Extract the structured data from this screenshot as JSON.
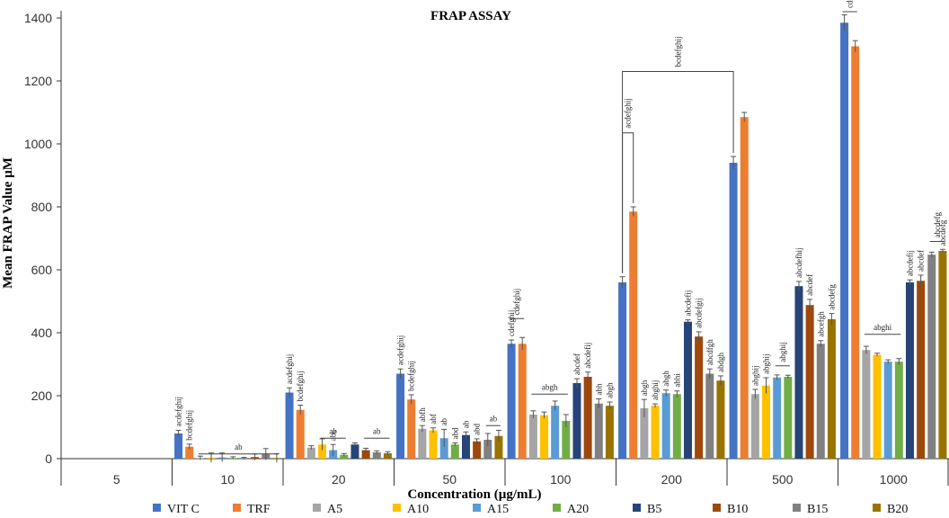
{
  "chart_data": {
    "type": "bar",
    "title": "FRAP ASSAY",
    "xlabel": "Concentration (µg/mL)",
    "ylabel": "Mean FRAP Value µM",
    "ylim": [
      0,
      1400
    ],
    "yticks": [
      0,
      200,
      400,
      600,
      800,
      1000,
      1200,
      1400
    ],
    "categories": [
      "5",
      "10",
      "20",
      "50",
      "100",
      "200",
      "500",
      "1000"
    ],
    "series": [
      {
        "name": "VIT C",
        "color": "#4472C4",
        "values": [
          0,
          80,
          210,
          270,
          365,
          560,
          940,
          1385
        ],
        "errors": [
          0,
          10,
          15,
          15,
          12,
          18,
          20,
          25
        ]
      },
      {
        "name": "TRF",
        "color": "#ED7D31",
        "values": [
          0,
          38,
          155,
          188,
          365,
          785,
          1085,
          1310
        ],
        "errors": [
          0,
          8,
          15,
          15,
          20,
          15,
          15,
          18
        ]
      },
      {
        "name": "A5",
        "color": "#A5A5A5",
        "values": [
          0,
          2,
          35,
          95,
          140,
          160,
          205,
          345
        ],
        "errors": [
          0,
          6,
          6,
          10,
          12,
          28,
          15,
          12
        ]
      },
      {
        "name": "A10",
        "color": "#FFC000",
        "values": [
          0,
          3,
          45,
          90,
          138,
          168,
          232,
          330
        ],
        "errors": [
          0,
          15,
          18,
          8,
          10,
          6,
          25,
          5
        ]
      },
      {
        "name": "A15",
        "color": "#5B9BD5",
        "values": [
          0,
          4,
          27,
          65,
          168,
          208,
          258,
          308
        ],
        "errors": [
          0,
          14,
          18,
          28,
          15,
          10,
          8,
          6
        ]
      },
      {
        "name": "A20",
        "color": "#70AD47",
        "values": [
          0,
          2,
          12,
          45,
          120,
          205,
          260,
          308
        ],
        "errors": [
          0,
          4,
          4,
          5,
          20,
          10,
          5,
          10
        ]
      },
      {
        "name": "B5",
        "color": "#264478",
        "values": [
          0,
          1,
          45,
          75,
          240,
          435,
          548,
          560
        ],
        "errors": [
          0,
          3,
          5,
          10,
          14,
          6,
          15,
          8
        ]
      },
      {
        "name": "B10",
        "color": "#9E480E",
        "values": [
          0,
          5,
          27,
          55,
          260,
          388,
          488,
          565
        ],
        "errors": [
          0,
          10,
          6,
          8,
          15,
          15,
          18,
          18
        ]
      },
      {
        "name": "B15",
        "color": "#808080",
        "values": [
          0,
          14,
          20,
          60,
          175,
          270,
          365,
          648
        ],
        "errors": [
          0,
          18,
          5,
          20,
          15,
          15,
          10,
          8
        ]
      },
      {
        "name": "B20",
        "color": "#997300",
        "values": [
          0,
          2,
          17,
          72,
          168,
          248,
          443,
          660
        ],
        "errors": [
          0,
          14,
          5,
          18,
          12,
          15,
          18,
          5
        ]
      }
    ],
    "bar_labels": [
      {
        "category": "10",
        "series": "VIT C",
        "text": "acdefghij"
      },
      {
        "category": "10",
        "series": "TRF",
        "text": "bcdefghij"
      },
      {
        "category": "20",
        "series": "VIT C",
        "text": "acdefghij"
      },
      {
        "category": "20",
        "series": "TRF",
        "text": "bcdefghij"
      },
      {
        "category": "20",
        "series": "A15",
        "text": "abc"
      },
      {
        "category": "50",
        "series": "VIT C",
        "text": "acdefghij"
      },
      {
        "category": "50",
        "series": "TRF",
        "text": "bcdefghij"
      },
      {
        "category": "50",
        "series": "A5",
        "text": "abfh"
      },
      {
        "category": "50",
        "series": "A10",
        "text": "abf"
      },
      {
        "category": "50",
        "series": "A15",
        "text": "ab"
      },
      {
        "category": "50",
        "series": "A20",
        "text": "abd"
      },
      {
        "category": "50",
        "series": "B5",
        "text": "ab"
      },
      {
        "category": "50",
        "series": "B10",
        "text": "abd"
      },
      {
        "category": "100",
        "series": "VIT C",
        "text": "cdefghij"
      },
      {
        "category": "100",
        "series": "B5",
        "text": "abcdef"
      },
      {
        "category": "100",
        "series": "B10",
        "text": "abcdefij"
      },
      {
        "category": "100",
        "series": "B15",
        "text": "abh"
      },
      {
        "category": "100",
        "series": "B20",
        "text": "abgh"
      },
      {
        "category": "200",
        "series": "A5",
        "text": "abgh"
      },
      {
        "category": "200",
        "series": "A10",
        "text": "abghij"
      },
      {
        "category": "200",
        "series": "A15",
        "text": "abgh"
      },
      {
        "category": "200",
        "series": "A20",
        "text": "abhi"
      },
      {
        "category": "200",
        "series": "B5",
        "text": "abcdefij"
      },
      {
        "category": "200",
        "series": "B10",
        "text": "abcdefgij"
      },
      {
        "category": "200",
        "series": "B15",
        "text": "abcdfgh"
      },
      {
        "category": "200",
        "series": "B20",
        "text": "abdgh"
      },
      {
        "category": "500",
        "series": "A5",
        "text": "abghij"
      },
      {
        "category": "500",
        "series": "A10",
        "text": "abghij"
      },
      {
        "category": "500",
        "series": "B5",
        "text": "abcdefhij"
      },
      {
        "category": "500",
        "series": "B10",
        "text": "abcdef"
      },
      {
        "category": "500",
        "series": "B15",
        "text": "abcefgh"
      },
      {
        "category": "500",
        "series": "B20",
        "text": "abcdefg"
      },
      {
        "category": "1000",
        "series": "B5",
        "text": "abcdefij"
      },
      {
        "category": "1000",
        "series": "B10",
        "text": "abcdef"
      },
      {
        "category": "1000",
        "series": "B20",
        "text": "abcdefg"
      }
    ],
    "group_labels": [
      {
        "category": "10",
        "from": "A5",
        "to": "B20",
        "value": 15,
        "text": "ab"
      },
      {
        "category": "20",
        "from": "A10",
        "to": "A20",
        "value": 65,
        "text": "ab"
      },
      {
        "category": "20",
        "from": "B10",
        "to": "B20",
        "value": 65,
        "text": "ab"
      },
      {
        "category": "50",
        "from": "B15",
        "to": "B20",
        "value": 105,
        "text": "ab"
      },
      {
        "category": "100",
        "from": "VIT C",
        "to": "TRF",
        "value": 445,
        "text": "cdefghij"
      },
      {
        "category": "100",
        "from": "A5",
        "to": "A20",
        "value": 205,
        "text": "abgh"
      },
      {
        "category": "500",
        "from": "A15",
        "to": "A20",
        "value": 295,
        "text": "abghij"
      },
      {
        "category": "1000",
        "from": "VIT C",
        "to": "TRF",
        "value": 1420,
        "text": "cdefghij"
      },
      {
        "category": "1000",
        "from": "A5",
        "to": "A20",
        "value": 395,
        "text": "abghi"
      },
      {
        "category": "1000",
        "from": "B15",
        "to": "B20",
        "value": 690,
        "text": "abcdefg"
      }
    ],
    "brackets": [
      {
        "category_left": "200",
        "series_left": "VIT C",
        "category_right": "200",
        "series_right": "TRF",
        "value": 1035,
        "text": "acdefghij"
      },
      {
        "category_left": "200",
        "series_left": "VIT C",
        "category_right": "500",
        "series_right": "VIT C",
        "value": 1230,
        "text": "bcdefghij"
      }
    ],
    "legend_position": "bottom",
    "grid": false
  }
}
